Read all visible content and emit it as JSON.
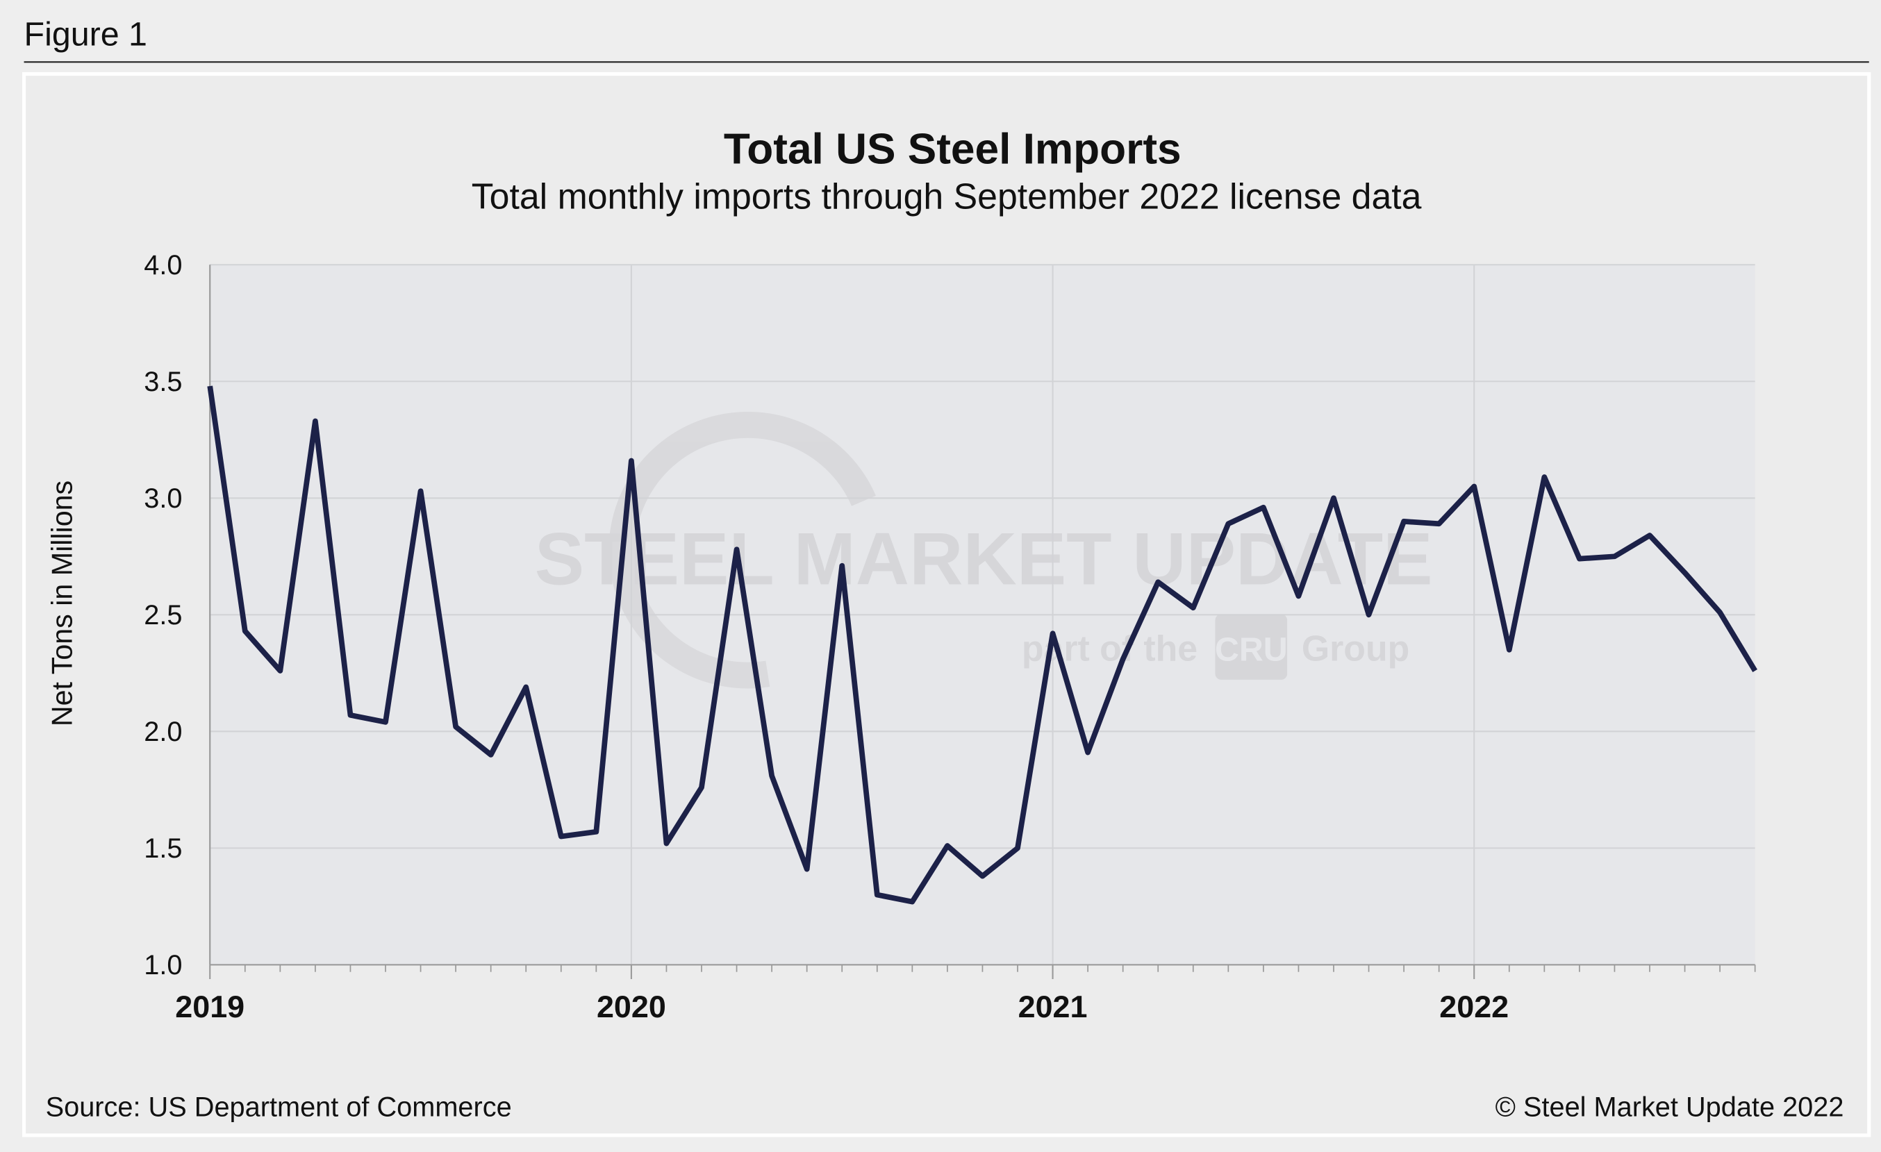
{
  "chart_data": {
    "type": "line",
    "figure_label": "Figure 1",
    "title": "Total US Steel Imports",
    "subtitle": "Total monthly imports through September 2022 license data",
    "y_label": "Net Tons in Millions",
    "source": "Source: US Department of Commerce",
    "copyright": "© Steel Market Update 2022",
    "watermark": {
      "brand": "STEEL MARKET UPDATE",
      "tagline": "part of the",
      "logo": "CRU",
      "group": "Group"
    },
    "categories": [
      "2019",
      null,
      null,
      null,
      null,
      null,
      null,
      null,
      null,
      null,
      null,
      null,
      "2020",
      null,
      null,
      null,
      null,
      null,
      null,
      null,
      null,
      null,
      null,
      null,
      "2021",
      null,
      null,
      null,
      null,
      null,
      null,
      null,
      null,
      null,
      null,
      null,
      "2022",
      null,
      null,
      null,
      null,
      null,
      null,
      null,
      null
    ],
    "series": [
      {
        "name": "Total US Steel Imports",
        "color": "#1c2148",
        "values": [
          3.48,
          2.43,
          2.26,
          3.33,
          2.07,
          2.04,
          3.03,
          2.02,
          1.9,
          2.19,
          1.55,
          1.57,
          3.16,
          1.52,
          1.76,
          2.78,
          1.81,
          1.41,
          2.71,
          1.3,
          1.27,
          1.51,
          1.38,
          1.5,
          2.42,
          1.91,
          2.31,
          2.64,
          2.53,
          2.89,
          2.96,
          2.58,
          3.0,
          2.5,
          2.9,
          2.89,
          3.05,
          2.35,
          3.09,
          2.74,
          2.75,
          2.84,
          2.68,
          2.51,
          2.26
        ]
      }
    ],
    "ylim": [
      1,
      4
    ],
    "yticks": [
      {
        "value": 1,
        "label": "1.0"
      },
      {
        "value": 1.5,
        "label": "1.5"
      },
      {
        "value": 2,
        "label": "2.0"
      },
      {
        "value": 2.5,
        "label": "2.5"
      },
      {
        "value": 3,
        "label": "3.0"
      },
      {
        "value": 3.5,
        "label": "3.5"
      },
      {
        "value": 4,
        "label": "4.0"
      }
    ],
    "grid": true
  }
}
